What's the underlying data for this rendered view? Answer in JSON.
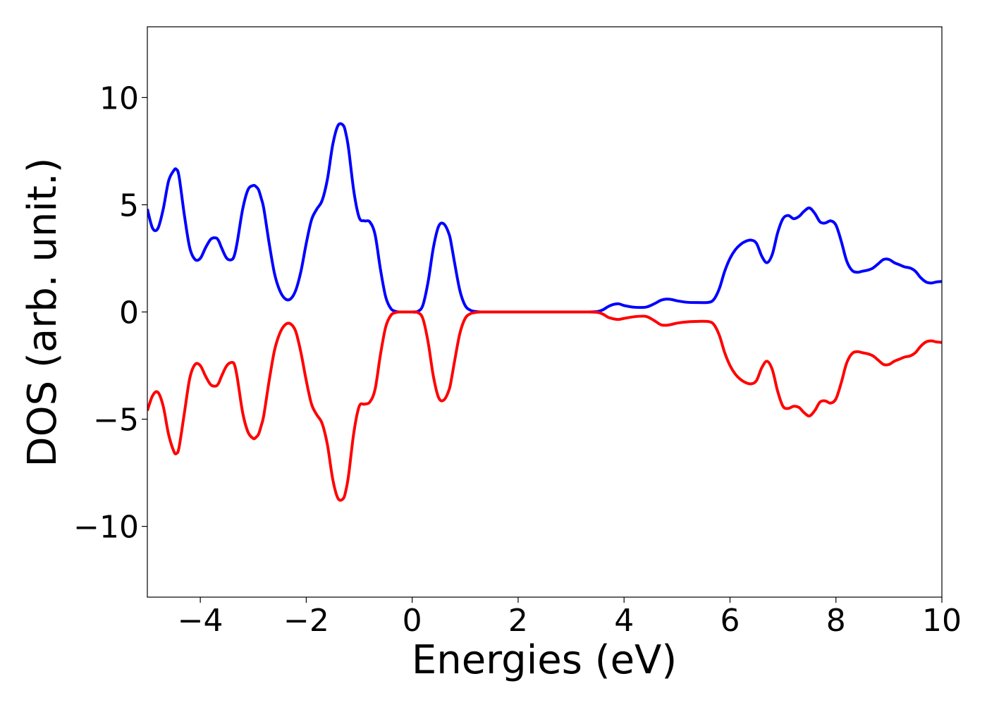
{
  "chart_data": {
    "type": "line",
    "xlabel": "Energies (eV)",
    "ylabel": "DOS (arb. unit.)",
    "xlim": [
      -5,
      10
    ],
    "ylim": [
      -13.3,
      13.3
    ],
    "xticks": [
      -4,
      -2,
      0,
      2,
      4,
      6,
      8,
      10
    ],
    "yticks": [
      -10,
      -5,
      0,
      5,
      10
    ],
    "xtick_labels": [
      "−4",
      "−2",
      "0",
      "2",
      "4",
      "6",
      "8",
      "10"
    ],
    "ytick_labels": [
      "−10",
      "−5",
      "0",
      "5",
      "10"
    ],
    "grid": false,
    "series": [
      {
        "color": "#0000ff",
        "x": [
          -5.0,
          -4.9,
          -4.8,
          -4.7,
          -4.6,
          -4.5,
          -4.45,
          -4.4,
          -4.3,
          -4.2,
          -4.1,
          -4.0,
          -3.9,
          -3.8,
          -3.7,
          -3.65,
          -3.6,
          -3.5,
          -3.4,
          -3.35,
          -3.3,
          -3.2,
          -3.1,
          -3.0,
          -2.95,
          -2.9,
          -2.85,
          -2.8,
          -2.7,
          -2.6,
          -2.5,
          -2.4,
          -2.3,
          -2.2,
          -2.1,
          -2.0,
          -1.9,
          -1.8,
          -1.7,
          -1.6,
          -1.5,
          -1.4,
          -1.3,
          -1.25,
          -1.2,
          -1.1,
          -1.0,
          -0.9,
          -0.8,
          -0.7,
          -0.6,
          -0.5,
          -0.4,
          -0.3,
          -0.2,
          -0.1,
          0.0,
          0.1,
          0.2,
          0.3,
          0.4,
          0.5,
          0.6,
          0.7,
          0.75,
          0.8,
          0.9,
          1.0,
          1.1,
          1.2,
          1.3,
          1.4,
          1.6,
          2.0,
          2.5,
          3.0,
          3.3,
          3.5,
          3.6,
          3.7,
          3.8,
          3.9,
          4.0,
          4.2,
          4.4,
          4.5,
          4.6,
          4.7,
          4.8,
          4.9,
          5.0,
          5.2,
          5.4,
          5.6,
          5.7,
          5.8,
          5.9,
          6.0,
          6.1,
          6.2,
          6.3,
          6.4,
          6.5,
          6.6,
          6.7,
          6.8,
          6.9,
          7.0,
          7.1,
          7.2,
          7.3,
          7.4,
          7.5,
          7.6,
          7.7,
          7.8,
          7.9,
          8.0,
          8.1,
          8.2,
          8.3,
          8.4,
          8.5,
          8.6,
          8.7,
          8.8,
          8.9,
          9.0,
          9.1,
          9.2,
          9.3,
          9.4,
          9.5,
          9.6,
          9.7,
          9.8,
          9.9,
          10.0
        ],
        "y": [
          4.8,
          3.9,
          3.9,
          4.8,
          6.1,
          6.6,
          6.65,
          6.3,
          4.5,
          3.0,
          2.45,
          2.5,
          3.0,
          3.4,
          3.45,
          3.3,
          3.0,
          2.5,
          2.45,
          2.7,
          3.3,
          4.8,
          5.7,
          5.9,
          5.85,
          5.7,
          5.3,
          4.8,
          3.2,
          1.8,
          1.0,
          0.62,
          0.6,
          1.0,
          1.9,
          3.2,
          4.3,
          4.8,
          5.2,
          6.2,
          7.8,
          8.7,
          8.7,
          8.3,
          7.6,
          5.6,
          4.4,
          4.25,
          4.2,
          3.6,
          2.0,
          0.7,
          0.15,
          0.02,
          0.0,
          0.0,
          0.0,
          0.02,
          0.3,
          1.4,
          3.0,
          4.0,
          4.1,
          3.6,
          3.0,
          2.3,
          1.0,
          0.3,
          0.08,
          0.02,
          0.0,
          0.0,
          0.0,
          0.0,
          0.0,
          0.0,
          0.0,
          0.02,
          0.1,
          0.25,
          0.35,
          0.38,
          0.3,
          0.22,
          0.22,
          0.3,
          0.42,
          0.55,
          0.6,
          0.58,
          0.52,
          0.45,
          0.44,
          0.45,
          0.6,
          1.1,
          1.9,
          2.5,
          2.9,
          3.15,
          3.3,
          3.35,
          3.2,
          2.6,
          2.3,
          2.7,
          3.7,
          4.35,
          4.5,
          4.35,
          4.45,
          4.7,
          4.85,
          4.6,
          4.2,
          4.15,
          4.25,
          4.05,
          3.3,
          2.4,
          1.95,
          1.85,
          1.9,
          1.95,
          2.05,
          2.25,
          2.45,
          2.45,
          2.3,
          2.2,
          2.1,
          2.05,
          1.9,
          1.6,
          1.4,
          1.35,
          1.4,
          1.42
        ]
      },
      {
        "color": "#ff0000",
        "x": [
          -5.0,
          -4.9,
          -4.8,
          -4.7,
          -4.6,
          -4.5,
          -4.45,
          -4.4,
          -4.3,
          -4.2,
          -4.1,
          -4.0,
          -3.9,
          -3.8,
          -3.7,
          -3.65,
          -3.6,
          -3.5,
          -3.4,
          -3.35,
          -3.3,
          -3.2,
          -3.1,
          -3.0,
          -2.95,
          -2.9,
          -2.85,
          -2.8,
          -2.7,
          -2.6,
          -2.5,
          -2.4,
          -2.3,
          -2.2,
          -2.1,
          -2.0,
          -1.9,
          -1.8,
          -1.7,
          -1.6,
          -1.5,
          -1.4,
          -1.3,
          -1.25,
          -1.2,
          -1.1,
          -1.0,
          -0.9,
          -0.8,
          -0.7,
          -0.6,
          -0.5,
          -0.4,
          -0.3,
          -0.2,
          -0.1,
          0.0,
          0.1,
          0.2,
          0.3,
          0.4,
          0.5,
          0.6,
          0.7,
          0.75,
          0.8,
          0.9,
          1.0,
          1.1,
          1.2,
          1.3,
          1.4,
          1.6,
          2.0,
          2.5,
          3.0,
          3.3,
          3.5,
          3.6,
          3.7,
          3.8,
          3.9,
          4.0,
          4.2,
          4.4,
          4.5,
          4.6,
          4.7,
          4.8,
          4.9,
          5.0,
          5.2,
          5.4,
          5.6,
          5.7,
          5.8,
          5.9,
          6.0,
          6.1,
          6.2,
          6.3,
          6.4,
          6.5,
          6.6,
          6.7,
          6.8,
          6.9,
          7.0,
          7.1,
          7.2,
          7.3,
          7.4,
          7.5,
          7.6,
          7.7,
          7.8,
          7.9,
          8.0,
          8.1,
          8.2,
          8.3,
          8.4,
          8.5,
          8.6,
          8.7,
          8.8,
          8.9,
          9.0,
          9.1,
          9.2,
          9.3,
          9.4,
          9.5,
          9.6,
          9.7,
          9.8,
          9.9,
          10.0
        ],
        "y": [
          -4.6,
          -3.9,
          -3.75,
          -4.4,
          -5.7,
          -6.5,
          -6.6,
          -6.3,
          -4.7,
          -3.1,
          -2.45,
          -2.5,
          -3.0,
          -3.4,
          -3.45,
          -3.3,
          -3.0,
          -2.5,
          -2.35,
          -2.5,
          -3.1,
          -4.7,
          -5.6,
          -5.9,
          -5.85,
          -5.7,
          -5.3,
          -4.8,
          -3.2,
          -1.8,
          -1.0,
          -0.6,
          -0.55,
          -0.9,
          -1.9,
          -3.2,
          -4.3,
          -4.8,
          -5.2,
          -6.2,
          -7.8,
          -8.7,
          -8.7,
          -8.3,
          -7.6,
          -5.6,
          -4.4,
          -4.3,
          -4.2,
          -3.6,
          -2.0,
          -0.7,
          -0.15,
          -0.02,
          0.0,
          0.0,
          0.0,
          -0.02,
          -0.3,
          -1.4,
          -3.0,
          -4.0,
          -4.1,
          -3.6,
          -3.0,
          -2.3,
          -1.0,
          -0.3,
          -0.08,
          -0.02,
          0.0,
          0.0,
          0.0,
          0.0,
          0.0,
          0.0,
          0.0,
          -0.02,
          -0.1,
          -0.25,
          -0.32,
          -0.35,
          -0.3,
          -0.22,
          -0.2,
          -0.3,
          -0.45,
          -0.6,
          -0.62,
          -0.58,
          -0.52,
          -0.46,
          -0.44,
          -0.45,
          -0.6,
          -1.1,
          -1.9,
          -2.5,
          -2.9,
          -3.15,
          -3.3,
          -3.35,
          -3.2,
          -2.6,
          -2.3,
          -2.7,
          -3.7,
          -4.4,
          -4.5,
          -4.4,
          -4.45,
          -4.7,
          -4.85,
          -4.6,
          -4.2,
          -4.15,
          -4.25,
          -4.05,
          -3.3,
          -2.4,
          -1.95,
          -1.85,
          -1.9,
          -1.95,
          -2.05,
          -2.25,
          -2.45,
          -2.45,
          -2.3,
          -2.2,
          -2.1,
          -2.05,
          -1.9,
          -1.6,
          -1.4,
          -1.35,
          -1.4,
          -1.42
        ]
      }
    ]
  }
}
